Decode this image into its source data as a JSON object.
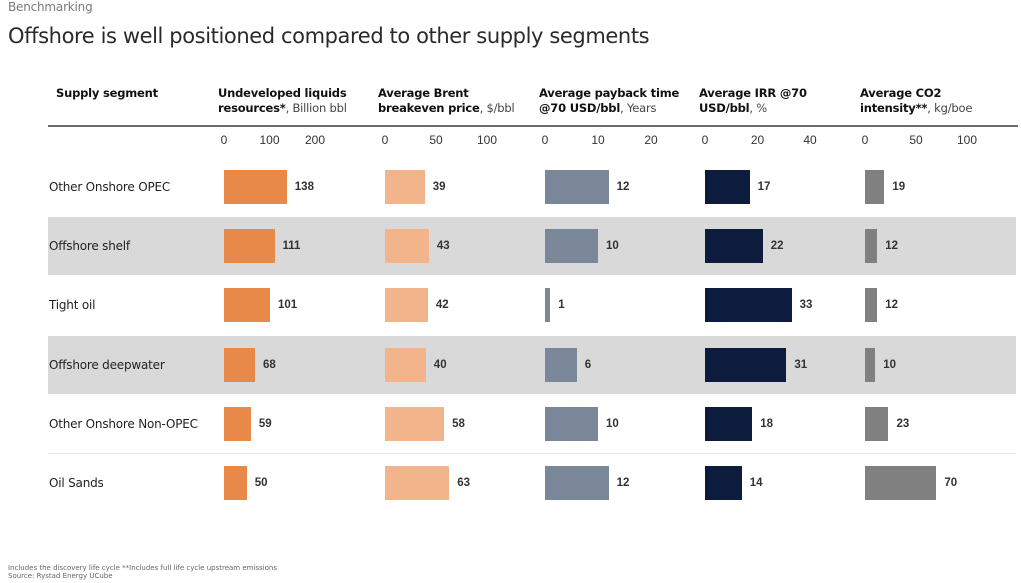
{
  "header": {
    "kicker": "Benchmarking",
    "title": "Offshore is well positioned compared to other supply segments"
  },
  "columns_header": {
    "segment": "Supply segment"
  },
  "footnotes": {
    "line1": "Includes the discovery life cycle **Includes full life cycle upstream emissions",
    "line2": "Source: Rystad Energy UCube"
  },
  "colors": {
    "resources": "#e8894a",
    "breakeven": "#f2b48b",
    "payback": "#7a8799",
    "irr": "#0d1c3d",
    "co2": "#808080",
    "band": "#d9d9d9"
  },
  "chart_data": {
    "type": "bar",
    "title": "Offshore is well positioned compared to other supply segments",
    "orientation": "horizontal",
    "categories": [
      "Other Onshore OPEC",
      "Offshore shelf",
      "Tight oil",
      "Offshore deepwater",
      "Other Onshore Non-OPEC",
      "Oil Sands"
    ],
    "shaded_rows": [
      1,
      3
    ],
    "series": [
      {
        "key": "resources",
        "name_bold": "Undeveloped liquids resources*",
        "unit": ", Billion bbl",
        "ticks": [
          0,
          100,
          200
        ],
        "xlim": [
          0,
          200
        ],
        "values": [
          138,
          111,
          101,
          68,
          59,
          50
        ]
      },
      {
        "key": "breakeven",
        "name_bold": "Average Brent breakeven price",
        "unit": ", $/bbl",
        "ticks": [
          0,
          50,
          100
        ],
        "xlim": [
          0,
          100
        ],
        "values": [
          39,
          43,
          42,
          40,
          58,
          63
        ]
      },
      {
        "key": "payback",
        "name_bold": "Average payback time @70 USD/bbl",
        "unit": ", Years",
        "ticks": [
          0,
          10,
          20
        ],
        "xlim": [
          0,
          20
        ],
        "values": [
          12,
          10,
          1,
          6,
          10,
          12
        ]
      },
      {
        "key": "irr",
        "name_bold": "Average IRR @70 USD/bbl",
        "unit": ", %",
        "ticks": [
          0,
          20,
          40
        ],
        "xlim": [
          0,
          40
        ],
        "values": [
          17,
          22,
          33,
          31,
          18,
          14
        ]
      },
      {
        "key": "co2",
        "name_bold": "Average CO2 intensity**",
        "unit": ", kg/boe",
        "ticks": [
          0,
          50,
          100
        ],
        "xlim": [
          0,
          100
        ],
        "values": [
          19,
          12,
          12,
          10,
          23,
          70
        ]
      }
    ]
  }
}
